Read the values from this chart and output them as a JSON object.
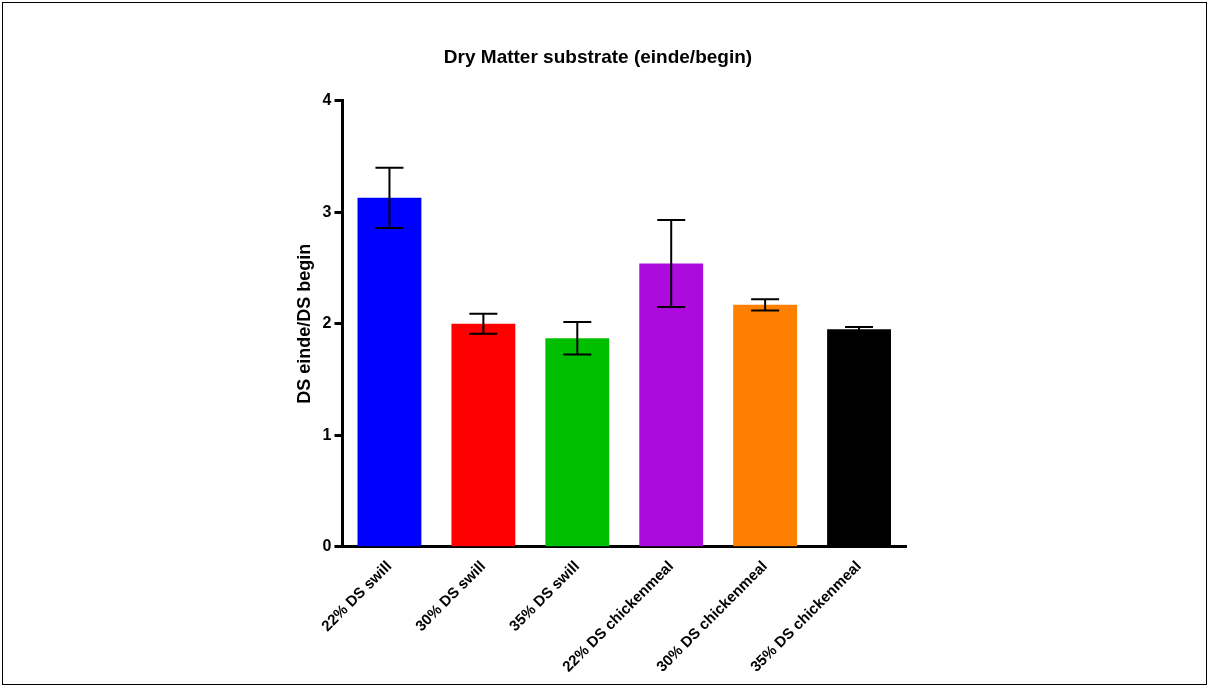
{
  "chart_data": {
    "type": "bar",
    "title": "Dry Matter substrate (einde/begin)",
    "ylabel": "DS einde/DS begin",
    "categories": [
      "22% DS swill",
      "30% DS swill",
      "35% DS swill",
      "22% DS chickenmeal",
      "30% DS chickenmeal",
      "35% DS chickenmeal"
    ],
    "values": [
      3.13,
      2.0,
      1.87,
      2.54,
      2.17,
      1.95
    ],
    "colors": [
      "#0000ff",
      "#ff0000",
      "#00bf00",
      "#ad0ade",
      "#ff8000",
      "#000000"
    ],
    "errors": [
      0.27,
      0.09,
      0.145,
      0.39,
      0.05,
      0.02
    ],
    "ylim": [
      0,
      4
    ],
    "yticks": [
      0,
      1,
      2,
      3,
      4
    ],
    "grid": false,
    "legend": false
  }
}
